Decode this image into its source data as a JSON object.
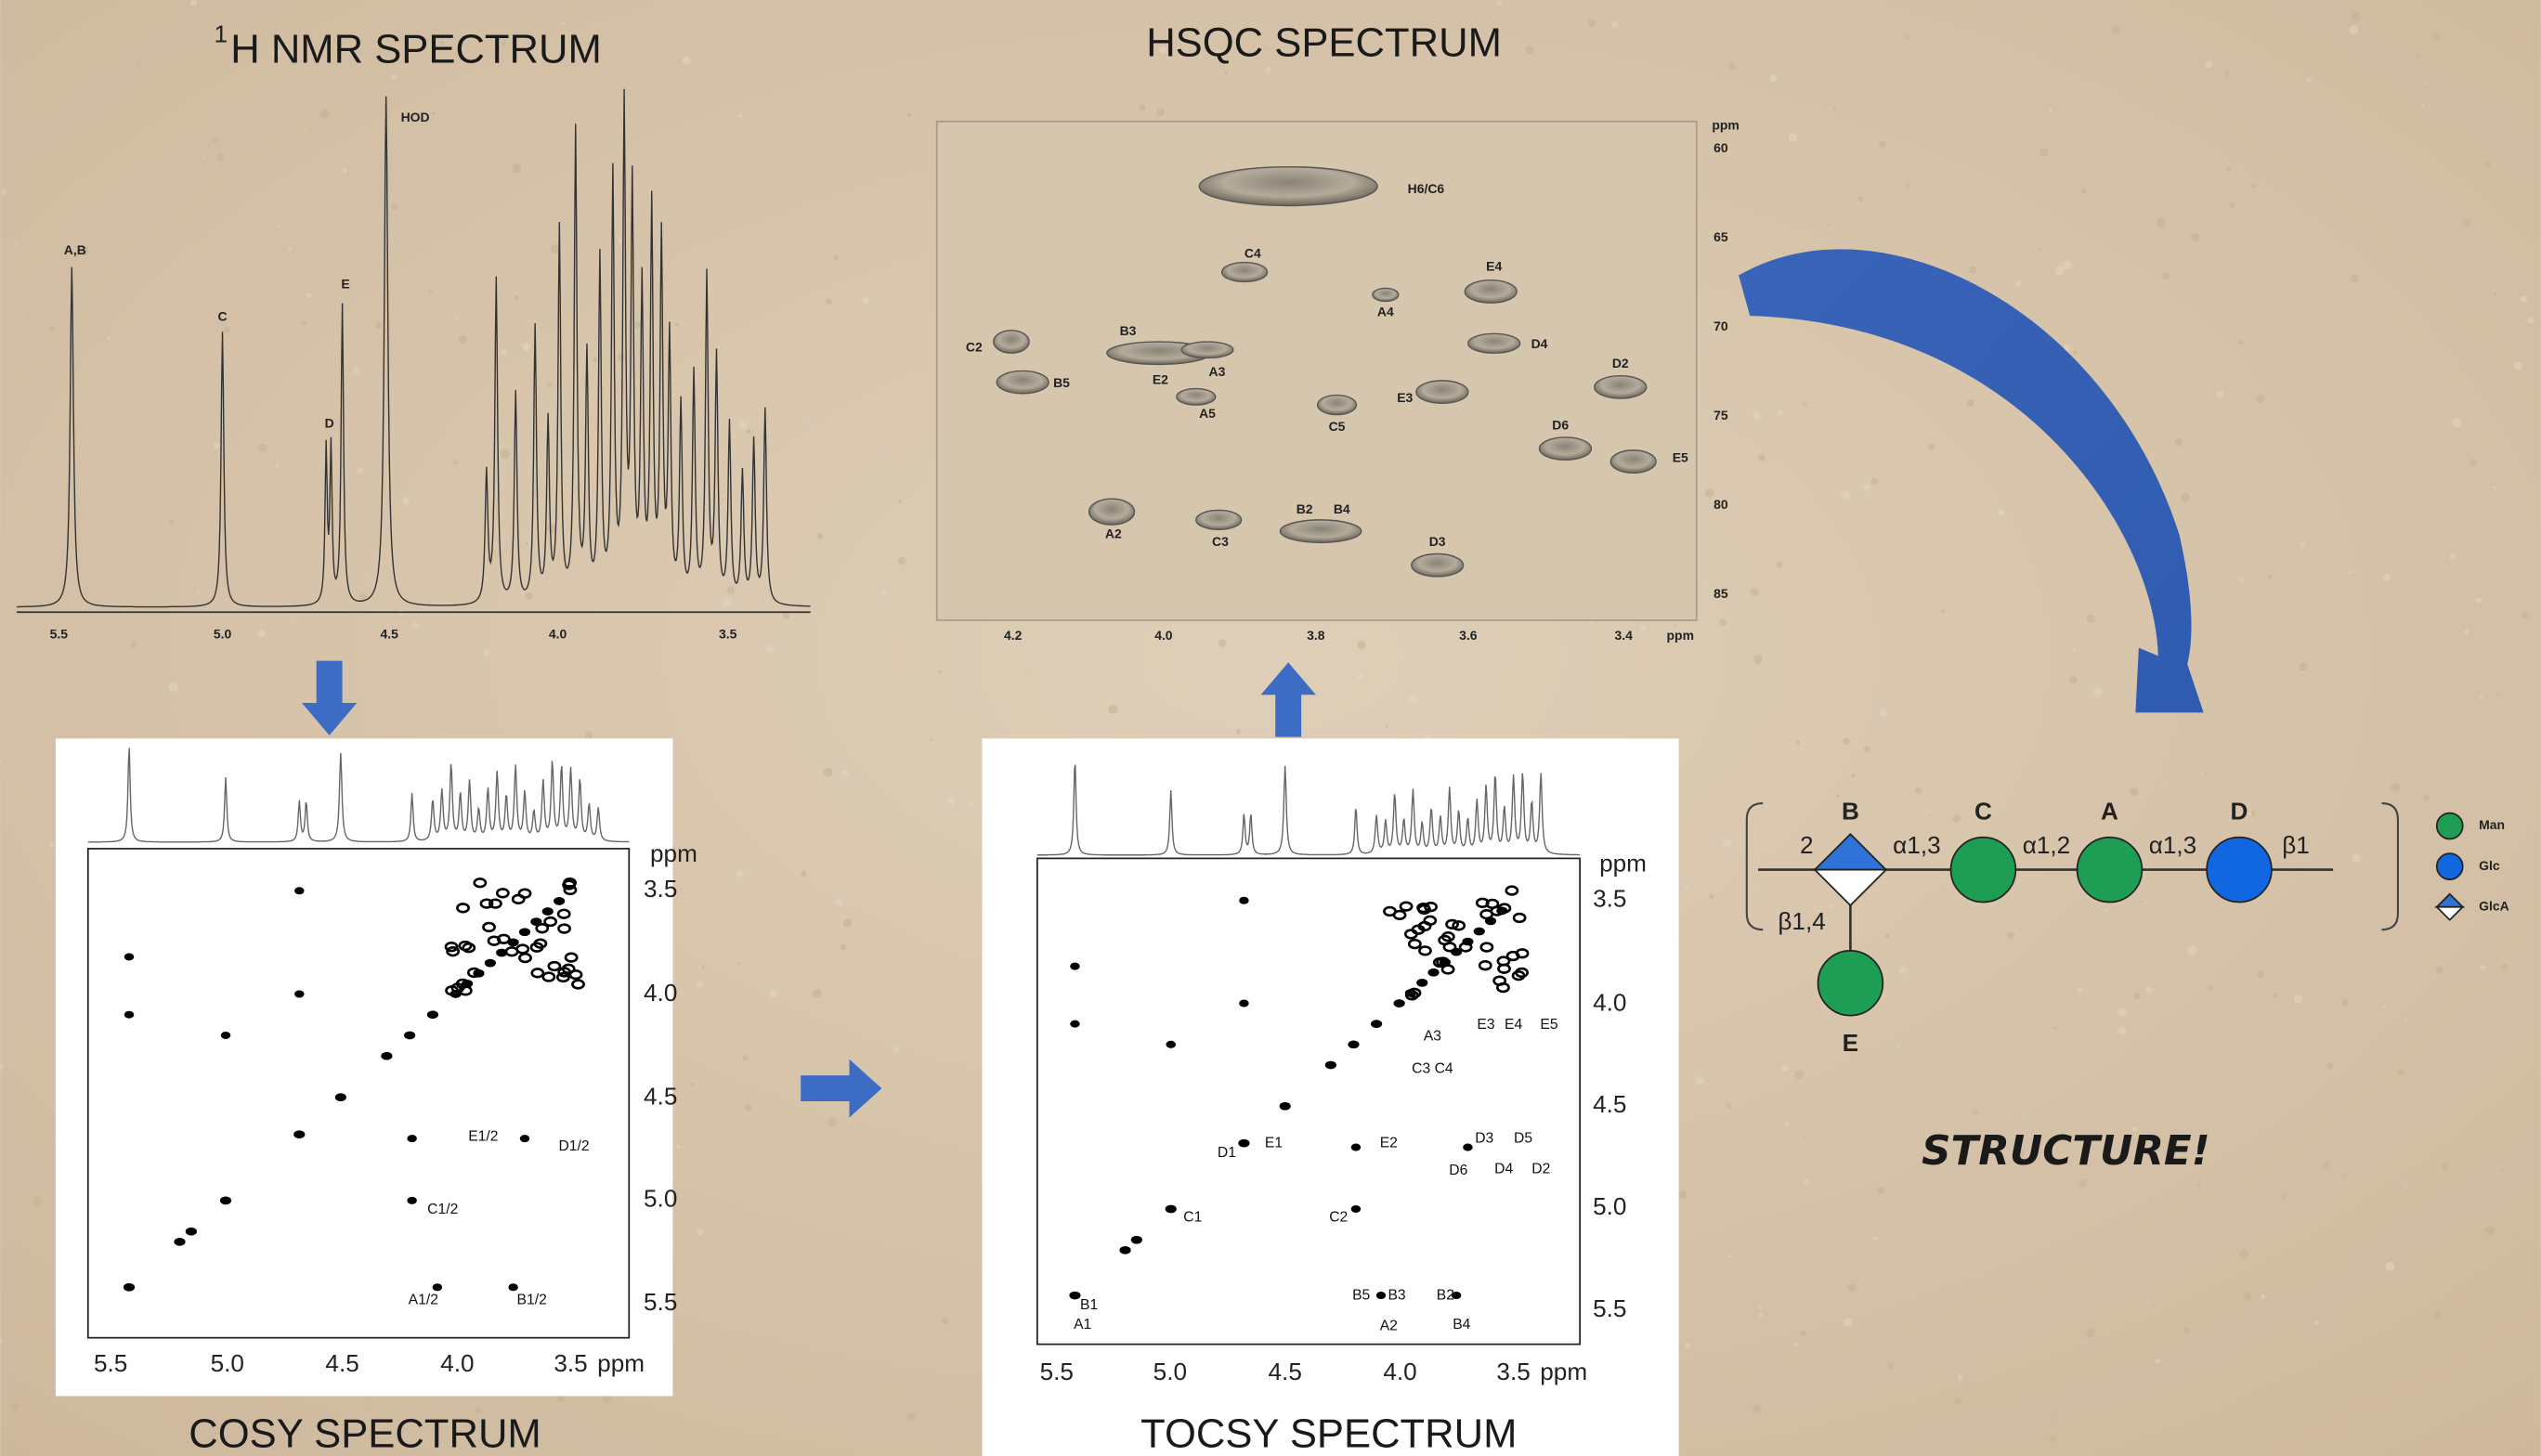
{
  "h1_nmr": {
    "title_sup": "1",
    "title": "H NMR SPECTRUM",
    "peak_labels": [
      "A,B",
      "C",
      "D",
      "E",
      "HOD"
    ],
    "x_ticks": [
      "5.5",
      "5.0",
      "4.5",
      "4.0",
      "3.5"
    ]
  },
  "hsqc": {
    "title": "HSQC SPECTRUM",
    "peak_labels": [
      "H6/C6",
      "C4",
      "A4",
      "E4",
      "C2",
      "B5",
      "B3",
      "E2",
      "A3",
      "A5",
      "C5",
      "E3",
      "D4",
      "D2",
      "D6",
      "E5",
      "A2",
      "C3",
      "B2",
      "B4",
      "D3"
    ],
    "x_ticks": [
      "4.2",
      "4.0",
      "3.8",
      "3.6",
      "3.4"
    ],
    "x_unit": "ppm",
    "y_ticks": [
      "60",
      "65",
      "70",
      "75",
      "80",
      "85"
    ],
    "y_unit": "ppm"
  },
  "cosy": {
    "title": "COSY SPECTRUM",
    "x_ticks": [
      "5.5",
      "5.0",
      "4.5",
      "4.0",
      "3.5"
    ],
    "x_unit": "ppm",
    "y_ticks": [
      "3.5",
      "4.0",
      "4.5",
      "5.0",
      "5.5"
    ],
    "y_unit": "ppm",
    "cross_peak_labels": [
      "E1/2",
      "D1/2",
      "C1/2",
      "A1/2",
      "B1/2"
    ]
  },
  "tocsy": {
    "title": "TOCSY SPECTRUM",
    "x_ticks": [
      "5.5",
      "5.0",
      "4.5",
      "4.0",
      "3.5"
    ],
    "x_unit": "ppm",
    "y_ticks": [
      "3.5",
      "4.0",
      "4.5",
      "5.0",
      "5.5"
    ],
    "y_unit": "ppm",
    "peak_labels": [
      "B1",
      "A1",
      "C1",
      "D1",
      "E1",
      "C2",
      "E2",
      "D3",
      "D5",
      "D6",
      "D4",
      "D2",
      "B5",
      "B3",
      "A2",
      "B2",
      "B4",
      "E3",
      "E4",
      "E5",
      "A3",
      "C3 C4"
    ]
  },
  "structure": {
    "residues": [
      "B",
      "C",
      "A",
      "D",
      "E"
    ],
    "linkages": [
      "2",
      "α1,3",
      "α1,2",
      "α1,3",
      "β1",
      "β1,4"
    ],
    "legend": [
      "Man",
      "Glc",
      "GlcA"
    ],
    "caption": "STRUCTURE!"
  }
}
